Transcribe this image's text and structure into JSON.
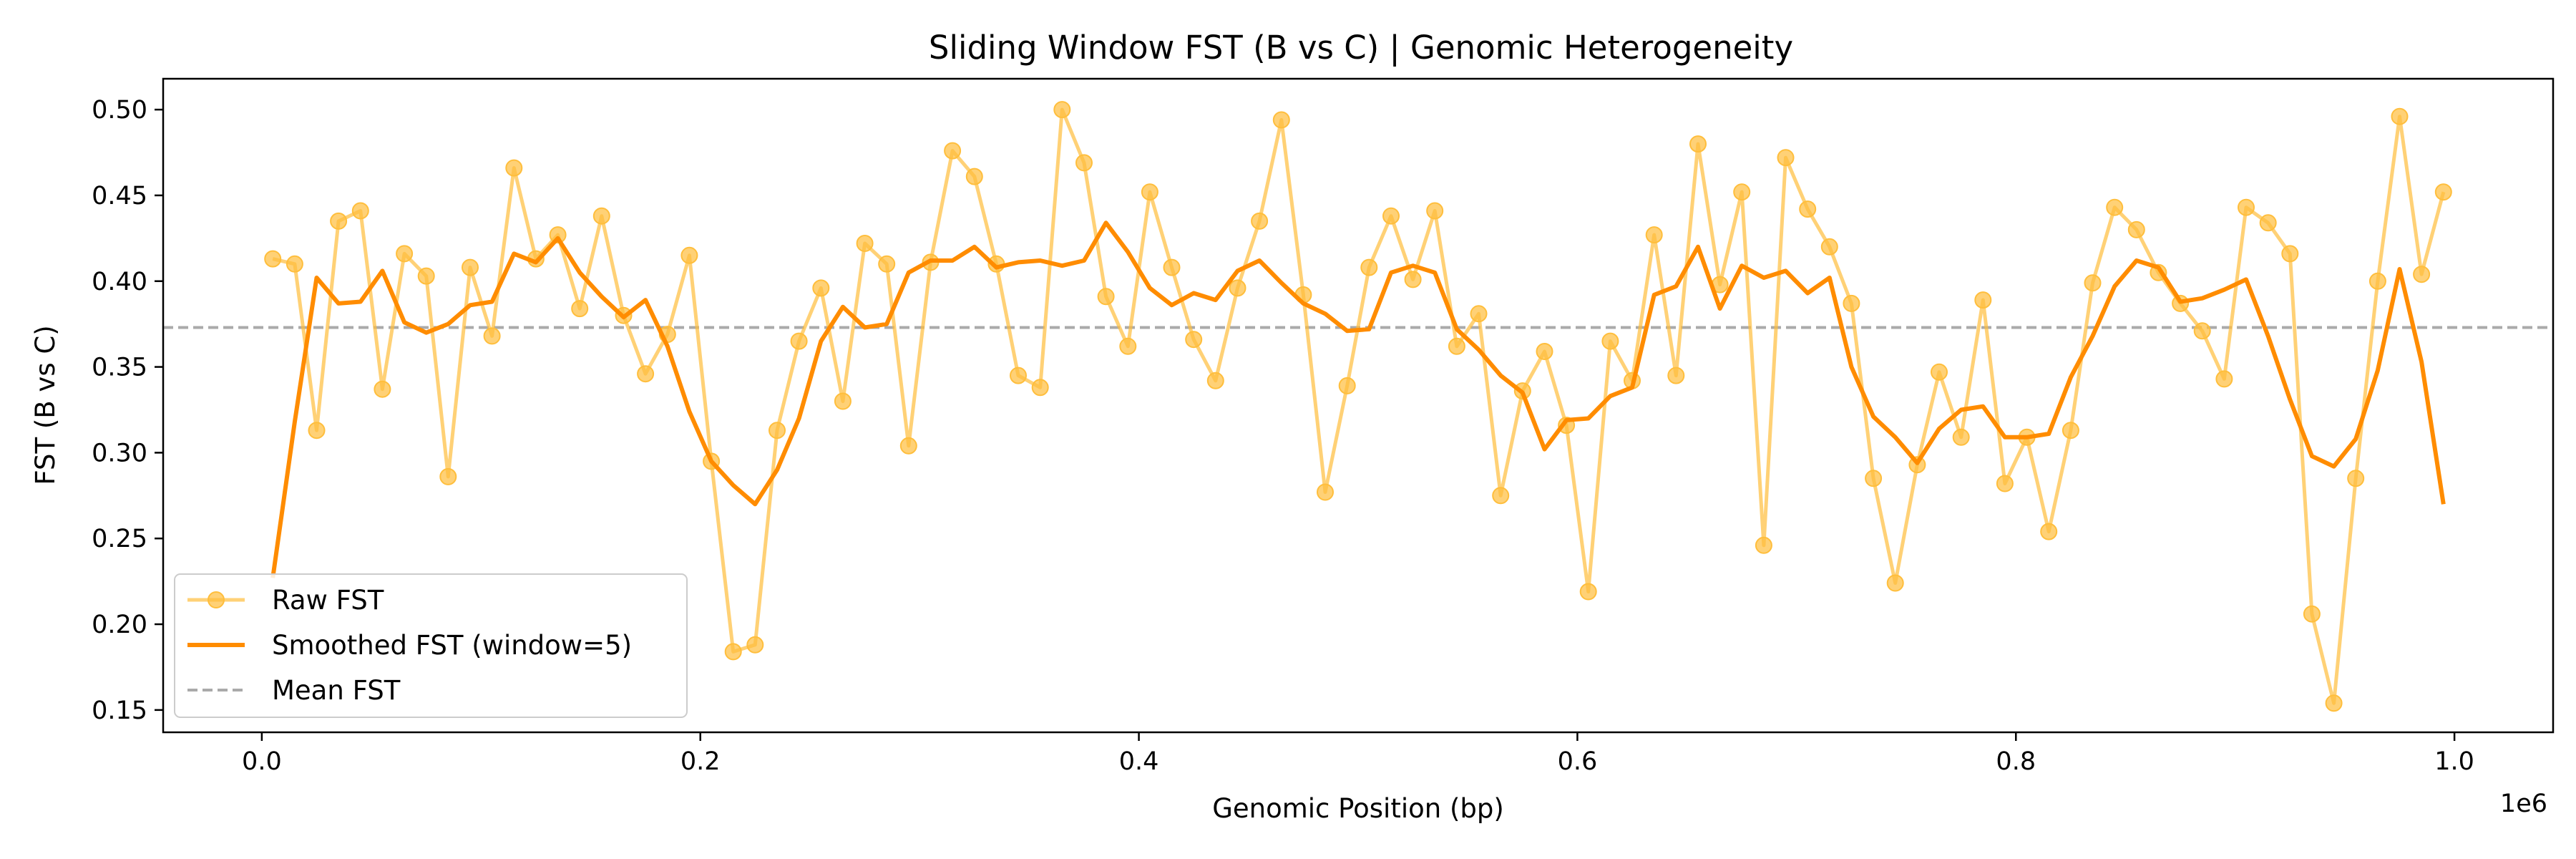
{
  "chart_data": {
    "type": "line",
    "title": "Sliding Window FST (B vs C) | Genomic Heterogeneity",
    "xlabel": "Genomic Position (bp)",
    "ylabel": "FST (B vs C)",
    "x_offset_label": "1e6",
    "xlim": [
      -0.045,
      1.045
    ],
    "ylim": [
      0.137,
      0.518
    ],
    "x_ticks": [
      0.0,
      0.2,
      0.4,
      0.6,
      0.8,
      1.0
    ],
    "x_tick_labels": [
      "0.0",
      "0.2",
      "0.4",
      "0.6",
      "0.8",
      "1.0"
    ],
    "y_ticks": [
      0.15,
      0.2,
      0.25,
      0.3,
      0.35,
      0.4,
      0.45,
      0.5
    ],
    "y_tick_labels": [
      "0.15",
      "0.20",
      "0.25",
      "0.30",
      "0.35",
      "0.40",
      "0.45",
      "0.50"
    ],
    "grid": false,
    "legend_position": "lower-left",
    "colors": {
      "raw": "#ffbe3c",
      "smoothed": "#ff8c00",
      "mean": "#aaaaaa"
    },
    "series": [
      {
        "name": "Raw FST",
        "style": "line-markers",
        "x": [
          0.005,
          0.015,
          0.025,
          0.035,
          0.045,
          0.055,
          0.065,
          0.075,
          0.085,
          0.095,
          0.105,
          0.115,
          0.125,
          0.135,
          0.145,
          0.155,
          0.165,
          0.175,
          0.185,
          0.195,
          0.205,
          0.215,
          0.225,
          0.235,
          0.245,
          0.255,
          0.265,
          0.275,
          0.285,
          0.295,
          0.305,
          0.315,
          0.325,
          0.335,
          0.345,
          0.355,
          0.365,
          0.375,
          0.385,
          0.395,
          0.405,
          0.415,
          0.425,
          0.435,
          0.445,
          0.455,
          0.465,
          0.475,
          0.485,
          0.495,
          0.505,
          0.515,
          0.525,
          0.535,
          0.545,
          0.555,
          0.565,
          0.575,
          0.585,
          0.595,
          0.605,
          0.615,
          0.625,
          0.635,
          0.645,
          0.655,
          0.665,
          0.675,
          0.685,
          0.695,
          0.705,
          0.715,
          0.725,
          0.735,
          0.745,
          0.755,
          0.765,
          0.775,
          0.785,
          0.795,
          0.805,
          0.815,
          0.825,
          0.835,
          0.845,
          0.855,
          0.865,
          0.875,
          0.885,
          0.895,
          0.905,
          0.915,
          0.925,
          0.935,
          0.945,
          0.955,
          0.965,
          0.975,
          0.985,
          0.995
        ],
        "values": [
          0.413,
          0.41,
          0.313,
          0.435,
          0.441,
          0.337,
          0.416,
          0.403,
          0.286,
          0.408,
          0.368,
          0.466,
          0.413,
          0.427,
          0.384,
          0.438,
          0.38,
          0.346,
          0.369,
          0.415,
          0.295,
          0.184,
          0.188,
          0.313,
          0.365,
          0.396,
          0.33,
          0.422,
          0.41,
          0.304,
          0.411,
          0.476,
          0.461,
          0.41,
          0.345,
          0.338,
          0.5,
          0.469,
          0.391,
          0.362,
          0.452,
          0.408,
          0.366,
          0.342,
          0.396,
          0.435,
          0.494,
          0.392,
          0.277,
          0.339,
          0.408,
          0.438,
          0.401,
          0.441,
          0.362,
          0.381,
          0.275,
          0.336,
          0.359,
          0.316,
          0.219,
          0.365,
          0.342,
          0.427,
          0.345,
          0.48,
          0.398,
          0.452,
          0.246,
          0.472,
          0.442,
          0.42,
          0.387,
          0.285,
          0.224,
          0.293,
          0.347,
          0.309,
          0.389,
          0.282,
          0.309,
          0.254,
          0.313,
          0.399,
          0.443,
          0.43,
          0.405,
          0.387,
          0.371,
          0.343,
          0.443,
          0.434,
          0.416,
          0.206,
          0.154,
          0.285,
          0.4,
          0.496,
          0.404,
          0.452
        ]
      },
      {
        "name": "Smoothed FST (window=5)",
        "style": "line",
        "x": [
          0.005,
          0.015,
          0.025,
          0.035,
          0.045,
          0.055,
          0.065,
          0.075,
          0.085,
          0.095,
          0.105,
          0.115,
          0.125,
          0.135,
          0.145,
          0.155,
          0.165,
          0.175,
          0.185,
          0.195,
          0.205,
          0.215,
          0.225,
          0.235,
          0.245,
          0.255,
          0.265,
          0.275,
          0.285,
          0.295,
          0.305,
          0.315,
          0.325,
          0.335,
          0.345,
          0.355,
          0.365,
          0.375,
          0.385,
          0.395,
          0.405,
          0.415,
          0.425,
          0.435,
          0.445,
          0.455,
          0.465,
          0.475,
          0.485,
          0.495,
          0.505,
          0.515,
          0.525,
          0.535,
          0.545,
          0.555,
          0.565,
          0.575,
          0.585,
          0.595,
          0.605,
          0.615,
          0.625,
          0.635,
          0.645,
          0.655,
          0.665,
          0.675,
          0.685,
          0.695,
          0.705,
          0.715,
          0.725,
          0.735,
          0.745,
          0.755,
          0.765,
          0.775,
          0.785,
          0.795,
          0.805,
          0.815,
          0.825,
          0.835,
          0.845,
          0.855,
          0.865,
          0.875,
          0.885,
          0.895,
          0.905,
          0.915,
          0.925,
          0.935,
          0.945,
          0.955,
          0.965,
          0.975,
          0.985,
          0.995
        ],
        "values": [
          0.227,
          0.318,
          0.402,
          0.387,
          0.388,
          0.406,
          0.376,
          0.37,
          0.375,
          0.386,
          0.388,
          0.416,
          0.411,
          0.425,
          0.405,
          0.391,
          0.379,
          0.389,
          0.362,
          0.324,
          0.295,
          0.281,
          0.27,
          0.29,
          0.32,
          0.365,
          0.385,
          0.373,
          0.375,
          0.405,
          0.412,
          0.412,
          0.42,
          0.408,
          0.411,
          0.412,
          0.409,
          0.412,
          0.434,
          0.417,
          0.396,
          0.386,
          0.393,
          0.389,
          0.406,
          0.412,
          0.399,
          0.387,
          0.381,
          0.371,
          0.372,
          0.405,
          0.409,
          0.405,
          0.372,
          0.36,
          0.345,
          0.335,
          0.302,
          0.319,
          0.32,
          0.333,
          0.338,
          0.392,
          0.397,
          0.42,
          0.384,
          0.409,
          0.402,
          0.406,
          0.393,
          0.402,
          0.35,
          0.321,
          0.309,
          0.294,
          0.314,
          0.325,
          0.327,
          0.309,
          0.309,
          0.311,
          0.344,
          0.368,
          0.397,
          0.412,
          0.408,
          0.388,
          0.39,
          0.395,
          0.401,
          0.368,
          0.331,
          0.298,
          0.292,
          0.308,
          0.348,
          0.407,
          0.353,
          0.27
        ]
      },
      {
        "name": "Mean FST",
        "style": "dashed-horizontal",
        "value": 0.373
      }
    ]
  }
}
